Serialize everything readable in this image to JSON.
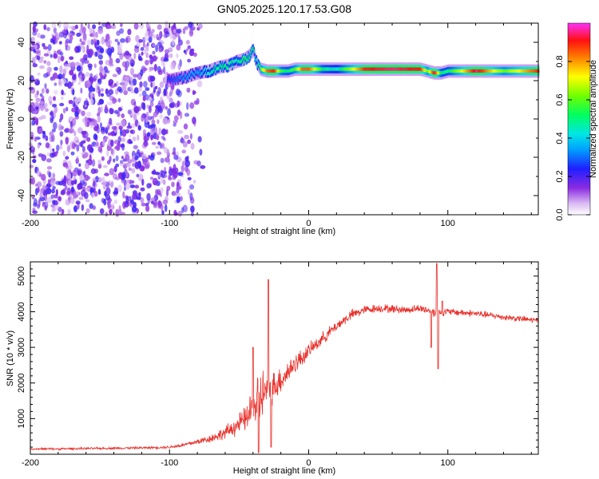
{
  "title": "GN05.2025.120.17.53.G08",
  "chart_data": [
    {
      "type": "heatmap",
      "xlabel": "Height of straight line (km)",
      "ylabel": "Frequency (Hz)",
      "xlim": [
        -200,
        165
      ],
      "ylim": [
        -50,
        50
      ],
      "xticks": [
        -200,
        -100,
        0,
        100
      ],
      "yticks": [
        -40,
        -20,
        0,
        20,
        40
      ],
      "colorbar": {
        "label": "Normalized spectral amplitude",
        "range": [
          0,
          1
        ],
        "ticks": [
          "0.0",
          "0.2",
          "0.4",
          "0.6",
          "0.8"
        ],
        "tick_values": [
          0,
          0.2,
          0.4,
          0.6,
          0.8
        ]
      },
      "noise_region": {
        "x": [
          -200,
          -85
        ],
        "y": [
          -50,
          50
        ],
        "amplitude": 0.15
      },
      "ridge": {
        "x": [
          -102,
          -95,
          -88,
          -80,
          -72,
          -65,
          -58,
          -52,
          -47,
          -43,
          -40,
          -38,
          -35,
          -30,
          -25,
          -20,
          -15,
          -10,
          -5,
          0,
          10,
          20,
          40,
          60,
          80,
          85,
          90,
          95,
          100,
          120,
          140,
          165
        ],
        "freq": [
          20,
          21,
          22,
          24,
          25,
          27,
          28,
          30,
          31,
          33,
          36,
          30,
          26,
          25,
          25,
          25,
          25,
          26,
          26,
          26,
          26,
          26,
          26,
          26,
          26,
          25,
          24,
          24,
          25,
          25,
          25,
          25
        ],
        "amplitude": [
          0.25,
          0.3,
          0.35,
          0.35,
          0.45,
          0.5,
          0.5,
          0.45,
          0.55,
          0.5,
          0.5,
          0.4,
          0.6,
          0.85,
          0.9,
          0.55,
          0.5,
          0.6,
          0.85,
          0.85,
          0.5,
          0.45,
          0.9,
          0.95,
          0.9,
          0.6,
          0.95,
          0.5,
          0.5,
          0.95,
          0.6,
          0.9
        ]
      }
    },
    {
      "type": "line",
      "xlabel": "Height of straight line (km)",
      "ylabel": "SNR (10 * v/v)",
      "xlim": [
        -200,
        165
      ],
      "ylim": [
        0,
        5400
      ],
      "xticks": [
        -200,
        -100,
        0,
        100
      ],
      "yticks": [
        1000,
        2000,
        3000,
        4000,
        5000
      ],
      "series": [
        {
          "color": "#e8302a",
          "x": [
            -200,
            -180,
            -160,
            -140,
            -120,
            -100,
            -90,
            -80,
            -70,
            -60,
            -50,
            -45,
            -40,
            -35,
            -30,
            -25,
            -20,
            -15,
            -10,
            -5,
            0,
            10,
            20,
            30,
            40,
            50,
            60,
            70,
            80,
            90,
            100,
            120,
            140,
            165
          ],
          "values": [
            150,
            150,
            160,
            170,
            180,
            200,
            260,
            350,
            450,
            600,
            850,
            1000,
            1300,
            1600,
            1800,
            1900,
            2100,
            2300,
            2550,
            2700,
            2900,
            3250,
            3600,
            3900,
            4050,
            4100,
            4080,
            4050,
            4100,
            4000,
            4000,
            3950,
            3850,
            3750
          ],
          "noise": [
            30,
            30,
            30,
            30,
            30,
            40,
            60,
            80,
            120,
            180,
            300,
            350,
            700,
            900,
            500,
            450,
            400,
            350,
            300,
            250,
            200,
            180,
            150,
            150,
            120,
            120,
            120,
            110,
            110,
            150,
            100,
            100,
            90,
            90
          ],
          "spikes": [
            {
              "x": -40,
              "y": 3000
            },
            {
              "x": -36,
              "y": 50
            },
            {
              "x": -29,
              "y": 4900
            },
            {
              "x": -27,
              "y": 200
            },
            {
              "x": 88,
              "y": 3000
            },
            {
              "x": 92,
              "y": 5350
            },
            {
              "x": 93,
              "y": 2400
            },
            {
              "x": 96,
              "y": 4300
            }
          ]
        }
      ]
    }
  ]
}
